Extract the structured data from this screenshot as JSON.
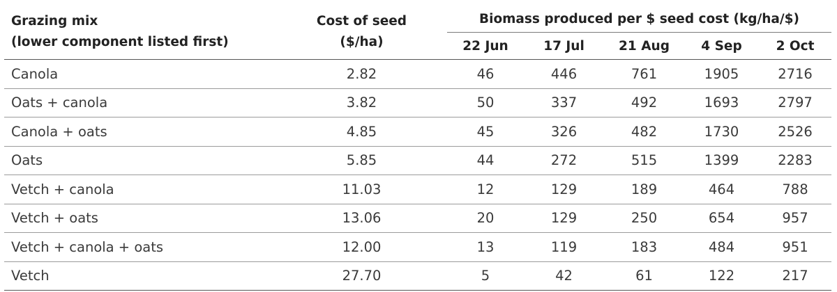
{
  "table": {
    "header": {
      "mix_line1": "Grazing mix",
      "mix_line2": "(lower component listed first)",
      "cost_line1": "Cost of seed",
      "cost_line2": "($/ha)",
      "group_label": "Biomass produced per $ seed cost (kg/ha/$)",
      "dates": [
        "22 Jun",
        "17 Jul",
        "21 Aug",
        "4 Sep",
        "2 Oct"
      ]
    },
    "rows": [
      {
        "mix": "Canola",
        "cost": "2.82",
        "values": [
          "46",
          "446",
          "761",
          "1905",
          "2716"
        ]
      },
      {
        "mix": "Oats + canola",
        "cost": "3.82",
        "values": [
          "50",
          "337",
          "492",
          "1693",
          "2797"
        ]
      },
      {
        "mix": "Canola + oats",
        "cost": "4.85",
        "values": [
          "45",
          "326",
          "482",
          "1730",
          "2526"
        ]
      },
      {
        "mix": "Oats",
        "cost": "5.85",
        "values": [
          "44",
          "272",
          "515",
          "1399",
          "2283"
        ]
      },
      {
        "mix": "Vetch + canola",
        "cost": "11.03",
        "values": [
          "12",
          "129",
          "189",
          "464",
          "788"
        ]
      },
      {
        "mix": "Vetch + oats",
        "cost": "13.06",
        "values": [
          "20",
          "129",
          "250",
          "654",
          "957"
        ]
      },
      {
        "mix": "Vetch + canola + oats",
        "cost": "12.00",
        "values": [
          "13",
          "119",
          "183",
          "484",
          "951"
        ]
      },
      {
        "mix": "Vetch",
        "cost": "27.70",
        "values": [
          "5",
          "42",
          "61",
          "122",
          "217"
        ]
      }
    ]
  }
}
